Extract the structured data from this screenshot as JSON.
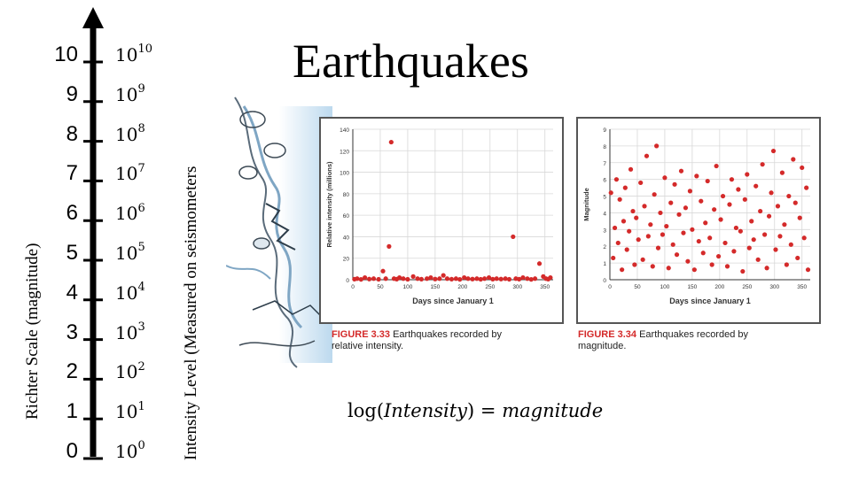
{
  "title": "Earthquakes",
  "richter_axis_label": "Richter Scale (magnitude)",
  "intensity_axis_label": "Intensity Level (Measured on seismometers",
  "scale_levels": [
    "0",
    "1",
    "2",
    "3",
    "4",
    "5",
    "6",
    "7",
    "8",
    "9",
    "10"
  ],
  "intensity_base": "10",
  "intensity_exponents": [
    "0",
    "1",
    "2",
    "3",
    "4",
    "5",
    "6",
    "7",
    "8",
    "9",
    "10"
  ],
  "formula": {
    "fn": "log",
    "arg": "Intensity",
    "eq": "=",
    "result": "magnitude"
  },
  "chart_data": [
    {
      "type": "scatter",
      "xlabel": "Days since January 1",
      "ylabel": "Relative intensity (millions)",
      "xlim": [
        0,
        365
      ],
      "ylim": [
        0,
        140
      ],
      "x_ticks": [
        "0",
        "50",
        "100",
        "150",
        "200",
        "250",
        "300",
        "350"
      ],
      "y_ticks": [
        "0",
        "20",
        "40",
        "60",
        "80",
        "100",
        "120",
        "140"
      ],
      "grid": true,
      "color": "#d42a2a",
      "x": [
        3,
        8,
        15,
        22,
        30,
        38,
        47,
        55,
        60,
        66,
        70,
        75,
        80,
        85,
        92,
        100,
        110,
        118,
        125,
        135,
        142,
        150,
        158,
        165,
        172,
        180,
        188,
        195,
        203,
        210,
        218,
        226,
        233,
        240,
        248,
        255,
        262,
        270,
        278,
        285,
        292,
        297,
        303,
        310,
        318,
        325,
        332,
        340,
        347,
        352,
        356,
        360
      ],
      "y": [
        0.5,
        1,
        0.3,
        2,
        0.6,
        1,
        0.4,
        8,
        1,
        31,
        128,
        1,
        0.5,
        2,
        1,
        0.4,
        3,
        1,
        0.5,
        1,
        2,
        0.6,
        1,
        4,
        1,
        0.5,
        1,
        0.3,
        2,
        1,
        0.6,
        1,
        0.4,
        1,
        2,
        0.5,
        1,
        0.6,
        1,
        0.4,
        40,
        1,
        0.5,
        2,
        1,
        0.3,
        1,
        15,
        3,
        1,
        0.5,
        2
      ],
      "caption_label": "FIGURE 3.33",
      "caption_line1": "Earthquakes recorded by",
      "caption_line2": "relative intensity."
    },
    {
      "type": "scatter",
      "xlabel": "Days since January 1",
      "ylabel": "Magnitude",
      "xlim": [
        0,
        365
      ],
      "ylim": [
        0,
        9
      ],
      "x_ticks": [
        "0",
        "50",
        "100",
        "150",
        "200",
        "250",
        "300",
        "350"
      ],
      "y_ticks": [
        "0",
        "1",
        "2",
        "3",
        "4",
        "5",
        "6",
        "7",
        "8",
        "9"
      ],
      "grid": true,
      "color": "#d42a2a",
      "x": [
        2,
        6,
        9,
        12,
        15,
        18,
        22,
        25,
        28,
        31,
        35,
        38,
        42,
        45,
        48,
        52,
        56,
        60,
        63,
        67,
        70,
        74,
        78,
        81,
        85,
        88,
        92,
        96,
        100,
        103,
        107,
        111,
        115,
        118,
        122,
        126,
        130,
        134,
        138,
        142,
        146,
        150,
        154,
        158,
        162,
        166,
        170,
        174,
        178,
        182,
        186,
        190,
        194,
        198,
        202,
        206,
        210,
        214,
        218,
        222,
        226,
        230,
        234,
        238,
        242,
        246,
        250,
        254,
        258,
        262,
        266,
        270,
        274,
        278,
        282,
        286,
        290,
        294,
        298,
        302,
        306,
        310,
        314,
        318,
        322,
        326,
        330,
        334,
        338,
        342,
        346,
        350,
        354,
        358,
        361
      ],
      "y": [
        5.2,
        1.3,
        3.1,
        6.0,
        2.2,
        4.8,
        0.6,
        3.5,
        5.5,
        1.8,
        2.9,
        6.6,
        4.1,
        0.9,
        3.7,
        2.4,
        5.8,
        1.2,
        4.4,
        7.4,
        2.6,
        3.3,
        0.8,
        5.1,
        8.0,
        1.9,
        4.0,
        2.7,
        6.1,
        3.2,
        0.7,
        4.6,
        2.1,
        5.7,
        1.5,
        3.9,
        6.5,
        2.8,
        4.3,
        1.1,
        5.3,
        3.0,
        0.6,
        6.2,
        2.3,
        4.7,
        1.6,
        3.4,
        5.9,
        2.5,
        0.9,
        4.2,
        6.8,
        1.4,
        3.6,
        5.0,
        2.2,
        0.8,
        4.5,
        6.0,
        1.7,
        3.1,
        5.4,
        2.9,
        0.5,
        4.8,
        6.3,
        1.9,
        3.5,
        2.4,
        5.6,
        1.2,
        4.1,
        6.9,
        2.7,
        0.7,
        3.8,
        5.2,
        7.7,
        1.8,
        4.4,
        2.6,
        6.4,
        3.3,
        0.9,
        5.0,
        2.1,
        7.2,
        4.6,
        1.3,
        3.7,
        6.7,
        2.5,
        5.5,
        0.6
      ],
      "caption_label": "FIGURE 3.34",
      "caption_line1": "Earthquakes recorded by",
      "caption_line2": "magnitude."
    }
  ]
}
